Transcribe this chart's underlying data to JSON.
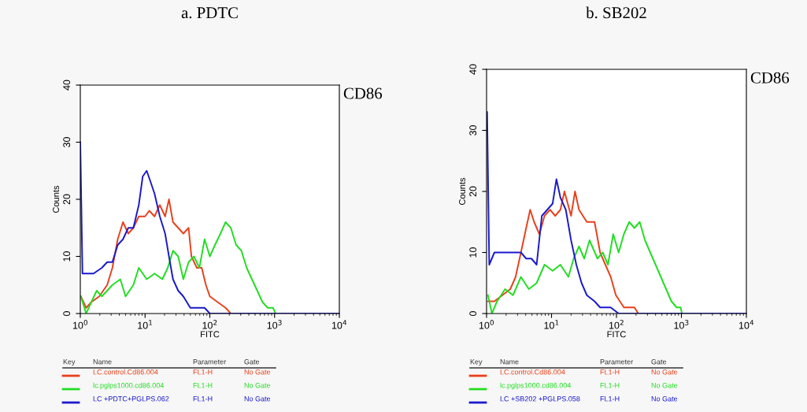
{
  "chart_data": [
    {
      "type": "line",
      "title": "a. PDTC",
      "xlabel": "FITC",
      "ylabel": "Counts",
      "log": "x",
      "xlim": [
        1,
        10000
      ],
      "xticks": [
        {
          "value": 1,
          "label": "10$^{0}$"
        },
        {
          "value": 10,
          "label": "10$^{1}$"
        },
        {
          "value": 100,
          "label": "10$^{2}$"
        },
        {
          "value": 1000,
          "label": "10$^{3}$"
        },
        {
          "value": 10000,
          "label": "10$^{4}$"
        }
      ],
      "ylim": [
        0,
        40
      ],
      "yticks": [
        0,
        10,
        20,
        30,
        40
      ],
      "grid": false,
      "legend": "bottom",
      "annotations": [
        "CD86",
        "Key",
        "Name",
        "Parameter",
        "Gate",
        "FL1-H",
        "No Gate",
        "FL1-H",
        "No Gate",
        "FL1-H",
        "No Gate"
      ],
      "series": [
        {
          "name": "LC.control.Cd86.004",
          "color": "#e8401c",
          "x": [
            1.02,
            1.23,
            1.48,
            1.96,
            2.6,
            3.13,
            3.78,
            4.56,
            5.5,
            6.6,
            8.0,
            10,
            11.6,
            14,
            16.9,
            20.4,
            23.4,
            27,
            32.5,
            39,
            47,
            52,
            63,
            75,
            87,
            100,
            132,
            175,
            211
          ],
          "values": [
            3,
            1,
            2,
            3,
            5,
            8,
            13,
            16,
            14,
            15,
            17,
            17,
            18,
            17,
            19,
            17,
            20,
            16,
            15,
            14,
            15,
            10,
            8,
            8,
            5,
            3,
            2,
            1,
            0
          ]
        },
        {
          "name": "lc.pglps1000.cd86.004",
          "color": "#22dd22",
          "x": [
            1.02,
            1.23,
            1.48,
            1.79,
            2.15,
            2.6,
            3.13,
            4.15,
            5.0,
            6.6,
            8.0,
            10.6,
            14,
            18.5,
            22.4,
            27,
            32.5,
            39,
            47,
            57,
            69,
            83,
            100,
            120,
            146,
            175,
            211,
            255,
            307,
            371,
            447,
            540,
            650,
            784,
            946,
            1040
          ],
          "values": [
            3,
            0,
            2,
            4,
            3,
            4,
            5,
            6,
            3,
            5,
            8,
            6,
            7,
            6,
            8,
            11,
            10,
            6,
            9,
            10,
            8,
            13,
            10,
            12,
            14,
            16,
            15,
            12,
            11,
            8,
            6,
            4,
            2,
            1,
            1,
            0
          ]
        },
        {
          "name": "LC +PDTC+PGLPS.062",
          "color": "#1a1acc",
          "x": [
            1.0,
            1.08,
            1.6,
            2.15,
            2.6,
            3.13,
            3.78,
            4.56,
            5.5,
            6.6,
            8.0,
            9.2,
            10.6,
            12.2,
            14,
            16.9,
            20.4,
            23.4,
            27,
            32.5,
            39,
            50,
            83,
            100,
            10000
          ],
          "values": [
            30,
            7,
            7,
            8,
            9,
            9,
            12,
            13,
            15,
            15,
            19,
            24,
            25,
            23,
            21,
            17,
            14,
            10,
            6,
            4,
            3,
            1,
            1,
            0,
            0
          ]
        }
      ]
    },
    {
      "type": "line",
      "title": "b. SB202",
      "xlabel": "FITC",
      "ylabel": "Counts",
      "log": "x",
      "xlim": [
        1,
        10000
      ],
      "xticks": [
        {
          "value": 1,
          "label": "10$^{0}$"
        },
        {
          "value": 10,
          "label": "10$^{1}$"
        },
        {
          "value": 100,
          "label": "10$^{2}$"
        },
        {
          "value": 1000,
          "label": "10$^{3}$"
        },
        {
          "value": 10000,
          "label": "10$^{4}$"
        }
      ],
      "ylim": [
        0,
        40
      ],
      "yticks": [
        0,
        10,
        20,
        30,
        40
      ],
      "grid": false,
      "legend": "bottom",
      "annotations": [
        "CD86",
        "Key",
        "Name",
        "Parameter",
        "Gate",
        "FL1-H",
        "No Gate",
        "FL1-H",
        "No Gate",
        "FL1-H",
        "No Gate"
      ],
      "series": [
        {
          "name": "LC.control.Cd86.004",
          "color": "#e8401c",
          "x": [
            1.05,
            1.32,
            1.75,
            2.32,
            2.8,
            3.38,
            4.07,
            4.69,
            5.4,
            6.5,
            7.8,
            9.5,
            11.4,
            13.7,
            15.8,
            20,
            23,
            26.5,
            35,
            46,
            56,
            67.5,
            81.5,
            98,
            130,
            189,
            217
          ],
          "values": [
            2,
            2,
            3,
            4,
            6,
            10,
            14,
            17,
            15,
            13,
            16,
            17,
            16,
            17,
            20,
            16,
            20,
            17,
            15,
            15,
            10,
            8,
            6,
            3,
            1,
            1,
            0
          ]
        },
        {
          "name": "lc.pglps1000.cd86.004",
          "color": "#22dd22",
          "x": [
            1.05,
            1.21,
            1.45,
            1.93,
            2.55,
            3.38,
            4.47,
            5.9,
            7.8,
            10.4,
            13.7,
            18.2,
            21.9,
            26.5,
            31.9,
            38.5,
            51,
            61.5,
            74,
            89,
            108,
            130,
            157,
            189,
            228,
            275,
            331,
            400,
            482,
            581,
            701,
            845,
            972,
            1019
          ],
          "values": [
            3,
            0,
            2,
            4,
            3,
            6,
            4,
            5,
            8,
            7,
            8,
            6,
            9,
            11,
            9,
            12,
            9,
            10,
            8,
            13,
            10,
            13,
            15,
            14,
            15,
            12,
            10,
            8,
            6,
            4,
            2,
            1,
            1,
            0
          ]
        },
        {
          "name": "LC +SB202 +PGLPS.058",
          "color": "#1a1acc",
          "x": [
            1.02,
            1.1,
            1.32,
            1.75,
            2.32,
            2.8,
            3.38,
            4.07,
            4.91,
            5.9,
            7.1,
            8.6,
            10.4,
            11.9,
            13.7,
            16.6,
            20,
            24.1,
            29,
            35,
            46,
            56,
            81.5,
            108,
            10000
          ],
          "values": [
            33,
            8,
            10,
            10,
            10,
            10,
            10,
            9,
            9,
            8,
            16,
            17,
            18,
            22,
            19,
            17,
            12,
            8,
            5,
            3,
            2,
            1,
            1,
            0,
            0
          ]
        }
      ]
    }
  ]
}
